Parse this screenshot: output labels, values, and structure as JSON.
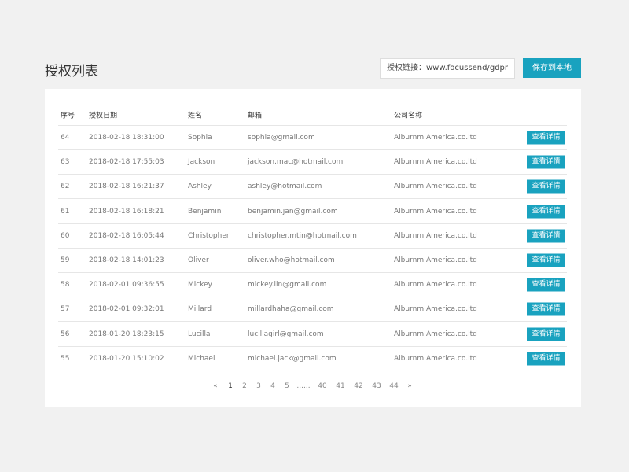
{
  "header": {
    "title": "授权列表",
    "link": "授权链接：www.focussend/gdpr",
    "save_button": "保存到本地"
  },
  "table": {
    "columns": [
      "序号",
      "授权日期",
      "姓名",
      "邮箱",
      "公司名称"
    ],
    "rows": [
      [
        "64",
        "2018-02-18 18:31:00",
        "Sophia",
        "sophia@gmail.com",
        "Alburnm America.co.ltd",
        "查看详情"
      ],
      [
        "63",
        "2018-02-18 17:55:03",
        "Jackson",
        "jackson.mac@hotmail.com",
        "Alburnm America.co.ltd",
        "查看详情"
      ],
      [
        "62",
        "2018-02-18 16:21:37",
        "Ashley",
        "ashley@hotmail.com",
        "Alburnm America.co.ltd",
        "查看详情"
      ],
      [
        "61",
        "2018-02-18 16:18:21",
        "Benjamin",
        "benjamin.jan@gmail.com",
        "Alburnm America.co.ltd",
        "查看详情"
      ],
      [
        "60",
        "2018-02-18 16:05:44",
        "Christopher",
        "christopher.mtin@hotmail.com",
        "Alburnm America.co.ltd",
        "查看详情"
      ],
      [
        "59",
        "2018-02-18 14:01:23",
        "Oliver",
        "oliver.who@hotmail.com",
        "Alburnm America.co.ltd",
        "查看详情"
      ],
      [
        "58",
        "2018-02-01 09:36:55",
        "Mickey",
        "mickey.lin@gmail.com",
        "Alburnm America.co.ltd",
        "查看详情"
      ],
      [
        "57",
        "2018-02-01 09:32:01",
        "Millard",
        "millardhaha@gmail.com",
        "Alburnm America.co.ltd",
        "查看详情"
      ],
      [
        "56",
        "2018-01-20 18:23:15",
        "Lucilla",
        "lucillagirl@gmail.com",
        "Alburnm America.co.ltd",
        "查看详情"
      ],
      [
        "55",
        "2018-01-20 15:10:02",
        "Michael",
        "michael.jack@gmail.com",
        "Alburnm America.co.ltd",
        "查看详情"
      ]
    ]
  },
  "pagination": [
    "«",
    "1",
    "2",
    "3",
    "4",
    "5",
    "......",
    "40",
    "41",
    "42",
    "43",
    "44",
    "»"
  ]
}
